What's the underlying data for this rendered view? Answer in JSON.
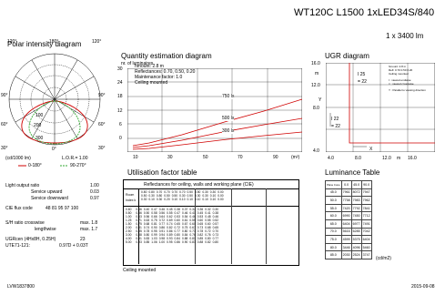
{
  "header": {
    "title": "WT120C L1500 1xLED34S/840",
    "subtitle": "1 x 3400 lm"
  },
  "polar": {
    "title": "Polar intensity diagram",
    "angles_top": [
      "120°",
      "180°",
      "120°"
    ],
    "angles_left": [
      "90°",
      "60°",
      "30°"
    ],
    "angles_right": [
      "90°",
      "60°",
      "30°"
    ],
    "angle_bottom": "0°",
    "rings": [
      "100",
      "200",
      "300"
    ],
    "unit_label": "(cd/1000 lm)",
    "lor": "L.O.R.= 1.00",
    "legend_0": "0-180°",
    "legend_90": "90-270°",
    "line_colors": {
      "c0": "#d00000",
      "c90": "#33aa33"
    }
  },
  "quantity": {
    "title": "Quantity estimation diagram",
    "ylabel": "nr. of luminaires",
    "info": [
      "hmount: 2.8 m",
      "Reflectances: 0.70, 0.50, 0.20",
      "Maintenance factor: 1.0",
      "Ceiling mounted"
    ],
    "curve_labels": [
      "750 lx",
      "500 lx",
      "300 lx"
    ],
    "y_ticks": [
      "30",
      "24",
      "18",
      "12",
      "6",
      "0"
    ],
    "x_ticks": [
      "10",
      "30",
      "50",
      "70",
      "90"
    ],
    "x_unit": "(m²)"
  },
  "ugr": {
    "title": "UGR diagram",
    "y_ticks": [
      "16.0",
      "12.0",
      "8.0",
      "4.0"
    ],
    "x_ticks": [
      "4.0",
      "8.0",
      "12.0",
      "16.0"
    ],
    "x_suffix": "m",
    "y_axis": "Y",
    "x_axis": "X",
    "y_unit": "m",
    "legend_info": [
      "hmount: 2.8 m",
      "Refl: 0.70 0.50 0.20",
      "Ceiling mounted"
    ],
    "legend_items": [
      "I : viewed endwise",
      "= : viewed crosswise",
      "Y : Parallel to viewing direction"
    ],
    "markers": [
      {
        "sym": "25",
        "view": "endwise"
      },
      {
        "sym": "22",
        "view": "crosswise"
      },
      {
        "sym": "22",
        "view": "endwise"
      },
      {
        "sym": "22",
        "view": "crosswise"
      }
    ]
  },
  "specs": {
    "rows": [
      {
        "label": "Light output ratio",
        "value": "1.00"
      },
      {
        "label": "Service upward",
        "value": "0.03"
      },
      {
        "label": "Service downward",
        "value": "0.97"
      },
      {
        "label": "CIE flux code",
        "value": "48 81 95 97 100"
      },
      {
        "label": "S/H ratio crosswise",
        "value": "max. 1.8"
      },
      {
        "label": "lengthwise",
        "value": "max. 1.7"
      },
      {
        "label": "UGRcen (4Hx8H, 0.25H)",
        "value": "23"
      },
      {
        "label": "UTE71-121:",
        "value": "0.97D + 0.03T"
      }
    ]
  },
  "util": {
    "title": "Utilisation factor table",
    "caption": "Reflectances for ceiling, walls and working plane (CIE)",
    "room_index_label": "Room Index k",
    "refl_groups": [
      [
        "0.80",
        "0.80",
        "0.70",
        "0.70",
        "0.70",
        "0.70",
        "0.50",
        "0.50",
        "0.30",
        "0.30",
        "0.00"
      ],
      [
        "0.50",
        "0.30",
        "0.80",
        "0.50",
        "0.50",
        "0.30",
        "0.50",
        "0.30",
        "0.30",
        "0.10",
        "0.00"
      ],
      [
        "0.30",
        "0.10",
        "0.30",
        "0.20",
        "0.10",
        "0.10",
        "0.10",
        "0.10",
        "0.10",
        "0.10",
        "0.00"
      ]
    ],
    "rows": [
      {
        "k": "0.60",
        "v": [
          "0.46",
          "0.40",
          "0.47",
          "0.46",
          "0.45",
          "0.38",
          "0.37",
          "0.32",
          "0.36",
          "0.32",
          "0.30"
        ]
      },
      {
        "k": "0.80",
        "v": [
          "0.56",
          "0.50",
          "0.58",
          "0.56",
          "0.55",
          "0.47",
          "0.46",
          "0.41",
          "0.45",
          "0.41",
          "0.38"
        ]
      },
      {
        "k": "1.00",
        "v": [
          "0.63",
          "0.56",
          "0.66",
          "0.64",
          "0.62",
          "0.53",
          "0.54",
          "0.46",
          "0.53",
          "0.48",
          "0.46"
        ]
      },
      {
        "k": "1.25",
        "v": [
          "0.71",
          "0.63",
          "0.75",
          "0.72",
          "0.69",
          "0.60",
          "0.61",
          "0.55",
          "0.60",
          "0.55",
          "0.52"
        ]
      },
      {
        "k": "1.50",
        "v": [
          "0.75",
          "0.68",
          "0.81",
          "0.77",
          "0.74",
          "0.65",
          "0.67",
          "0.60",
          "0.65",
          "0.60",
          "0.57"
        ]
      },
      {
        "k": "2.00",
        "v": [
          "0.81",
          "0.74",
          "0.90",
          "0.86",
          "0.82",
          "0.72",
          "0.75",
          "0.67",
          "0.73",
          "0.68",
          "0.65"
        ]
      },
      {
        "k": "2.50",
        "v": [
          "0.85",
          "0.78",
          "0.95",
          "0.91",
          "0.86",
          "0.77",
          "0.80",
          "0.73",
          "0.78",
          "0.72",
          "0.70"
        ]
      },
      {
        "k": "3.00",
        "v": [
          "0.88",
          "0.80",
          "0.99",
          "0.94",
          "0.89",
          "0.80",
          "0.84",
          "0.76",
          "0.82",
          "0.76",
          "0.73"
        ]
      },
      {
        "k": "4.00",
        "v": [
          "0.91",
          "0.83",
          "1.03",
          "0.98",
          "0.93",
          "0.84",
          "0.88",
          "0.81",
          "0.85",
          "0.80",
          "0.77"
        ]
      },
      {
        "k": "5.00",
        "v": [
          "0.93",
          "0.85",
          "1.06",
          "1.00",
          "0.95",
          "0.86",
          "0.90",
          "0.83",
          "0.88",
          "0.82",
          "0.80"
        ]
      }
    ],
    "footer": "Ceiling mounted"
  },
  "luminance": {
    "title": "Luminance Table",
    "header_label": "Plane Cone",
    "headers": [
      "0.0",
      "45.0",
      "90.0"
    ],
    "rows": [
      {
        "a": "45.0",
        "v": [
          "7961",
          "8072",
          "7947"
        ]
      },
      {
        "a": "50.0",
        "v": [
          "7758",
          "7983",
          "7962"
        ]
      },
      {
        "a": "55.0",
        "v": [
          "7420",
          "7792",
          "7841"
        ]
      },
      {
        "a": "60.0",
        "v": [
          "6990",
          "7450",
          "7712"
        ]
      },
      {
        "a": "65.0",
        "v": [
          "6404",
          "6977",
          "7491"
        ]
      },
      {
        "a": "70.0",
        "v": [
          "5616",
          "6285",
          "7042"
        ]
      },
      {
        "a": "75.0",
        "v": [
          "4599",
          "5375",
          "6404"
        ]
      },
      {
        "a": "80.0",
        "v": [
          "3446",
          "4096",
          "5460"
        ]
      },
      {
        "a": "85.0",
        "v": [
          "2030",
          "2524",
          "3747"
        ]
      }
    ],
    "unit": "(cd/m2)"
  },
  "footer": {
    "code": "LVW1837800",
    "date": "2015-09-08"
  }
}
